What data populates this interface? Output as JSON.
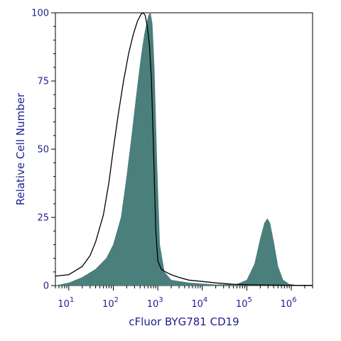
{
  "chart_data": {
    "type": "area",
    "xlabel": "cFluor BYG781 CD19",
    "ylabel": "Relative Cell Number",
    "x_scale": "log",
    "xlim": [
      5,
      3000000
    ],
    "ylim": [
      0,
      100
    ],
    "y_ticks": [
      0,
      25,
      50,
      75,
      100
    ],
    "x_ticks": [
      {
        "base": "10",
        "exp": "1",
        "value": 10
      },
      {
        "base": "10",
        "exp": "2",
        "value": 100
      },
      {
        "base": "10",
        "exp": "3",
        "value": 1000
      },
      {
        "base": "10",
        "exp": "4",
        "value": 10000
      },
      {
        "base": "10",
        "exp": "5",
        "value": 100000
      },
      {
        "base": "10",
        "exp": "6",
        "value": 1000000
      }
    ],
    "grid": false,
    "legend": "none",
    "series": [
      {
        "style": "filled",
        "color": "#4a7f7c",
        "points": [
          [
            5,
            0
          ],
          [
            10,
            1
          ],
          [
            20,
            3
          ],
          [
            40,
            6
          ],
          [
            70,
            10
          ],
          [
            100,
            15
          ],
          [
            150,
            25
          ],
          [
            200,
            40
          ],
          [
            260,
            55
          ],
          [
            320,
            68
          ],
          [
            380,
            78
          ],
          [
            440,
            86
          ],
          [
            500,
            92
          ],
          [
            560,
            96
          ],
          [
            620,
            99
          ],
          [
            680,
            100
          ],
          [
            750,
            96
          ],
          [
            830,
            80
          ],
          [
            950,
            45
          ],
          [
            1100,
            15
          ],
          [
            1400,
            5
          ],
          [
            2000,
            2
          ],
          [
            5000,
            1
          ],
          [
            20000,
            0.3
          ],
          [
            60000,
            0.5
          ],
          [
            100000,
            2
          ],
          [
            150000,
            8
          ],
          [
            200000,
            17
          ],
          [
            250000,
            23
          ],
          [
            290000,
            24.5
          ],
          [
            330000,
            23
          ],
          [
            400000,
            16
          ],
          [
            500000,
            7
          ],
          [
            650000,
            2
          ],
          [
            900000,
            0.5
          ],
          [
            1500000,
            0
          ]
        ]
      },
      {
        "style": "outline",
        "color": "#000000",
        "points": [
          [
            5,
            3.5
          ],
          [
            10,
            4
          ],
          [
            20,
            7
          ],
          [
            30,
            11
          ],
          [
            40,
            16
          ],
          [
            60,
            26
          ],
          [
            80,
            38
          ],
          [
            100,
            50
          ],
          [
            130,
            63
          ],
          [
            170,
            75
          ],
          [
            220,
            85
          ],
          [
            280,
            92
          ],
          [
            350,
            97
          ],
          [
            420,
            99.5
          ],
          [
            470,
            100
          ],
          [
            520,
            99
          ],
          [
            580,
            95
          ],
          [
            650,
            88
          ],
          [
            720,
            75
          ],
          [
            800,
            50
          ],
          [
            900,
            20
          ],
          [
            1000,
            9
          ],
          [
            1200,
            6
          ],
          [
            1500,
            5
          ],
          [
            2000,
            4
          ],
          [
            3000,
            3
          ],
          [
            5000,
            2
          ],
          [
            10000,
            1.5
          ],
          [
            20000,
            1
          ],
          [
            50000,
            0.5
          ],
          [
            100000,
            0.3
          ],
          [
            1000000,
            0.1
          ],
          [
            3000000,
            0.1
          ]
        ]
      }
    ]
  }
}
